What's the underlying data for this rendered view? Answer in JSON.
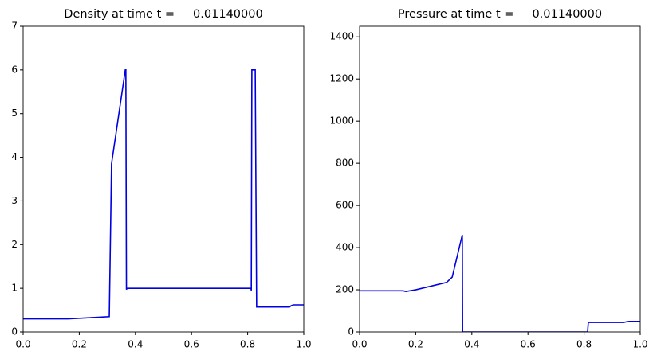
{
  "chart_data": [
    {
      "type": "line",
      "title": "Density at time t =     0.01140000",
      "x": [
        0,
        0.16,
        0.307,
        0.315,
        0.364,
        0.366,
        0.368,
        0.37,
        0.812,
        0.813,
        0.815,
        0.818,
        0.827,
        0.832,
        0.949,
        0.955,
        0.963,
        1.0
      ],
      "series": [
        {
          "color": "#0000e0",
          "values": [
            0.3,
            0.3,
            0.35,
            3.85,
            6.0,
            6.0,
            0.97,
            1.0,
            1.0,
            0.95,
            6.0,
            6.0,
            6.0,
            0.57,
            0.57,
            0.6,
            0.62,
            0.62
          ]
        }
      ],
      "xlim": [
        0,
        1
      ],
      "ylim": [
        0,
        7
      ],
      "xticks": [
        {
          "value": 0,
          "label": "0.0"
        },
        {
          "value": 0.2,
          "label": "0.2"
        },
        {
          "value": 0.4,
          "label": "0.4"
        },
        {
          "value": 0.6,
          "label": "0.6"
        },
        {
          "value": 0.8,
          "label": "0.8"
        },
        {
          "value": 1,
          "label": "1.0"
        }
      ],
      "yticks": [
        0,
        1,
        2,
        3,
        4,
        5,
        6,
        7
      ]
    },
    {
      "type": "line",
      "title": "Pressure at time t =     0.01140000",
      "x": [
        0,
        0.155,
        0.165,
        0.2,
        0.31,
        0.33,
        0.366,
        0.367,
        0.8,
        0.8125,
        0.815,
        0.94,
        0.96,
        1.0
      ],
      "series": [
        {
          "color": "#0000e0",
          "values": [
            195,
            195,
            192,
            200,
            235,
            260,
            460,
            0,
            0,
            0,
            45,
            45,
            50,
            50
          ]
        }
      ],
      "xlim": [
        0,
        1
      ],
      "ylim": [
        0,
        1450
      ],
      "xticks": [
        {
          "value": 0,
          "label": "0.0"
        },
        {
          "value": 0.2,
          "label": "0.2"
        },
        {
          "value": 0.4,
          "label": "0.4"
        },
        {
          "value": 0.6,
          "label": "0.6"
        },
        {
          "value": 0.8,
          "label": "0.8"
        },
        {
          "value": 1,
          "label": "1.0"
        }
      ],
      "yticks": [
        0,
        200,
        400,
        600,
        800,
        1000,
        1200,
        1400
      ]
    }
  ]
}
